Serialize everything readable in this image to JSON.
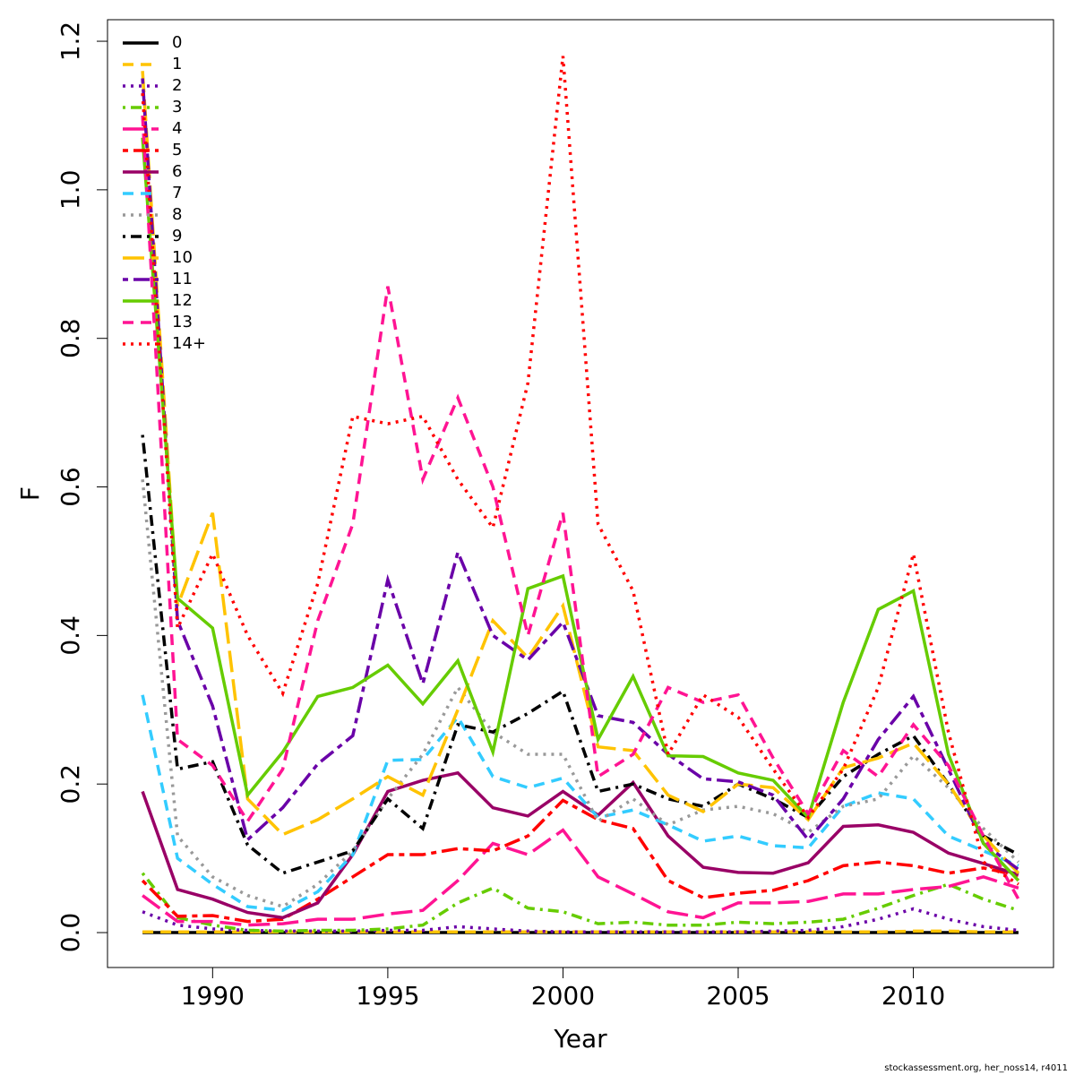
{
  "chart_data": {
    "type": "line",
    "x_label": "Year",
    "y_label": "F",
    "footer": "stockassessment.org, her_noss14, r4011",
    "x": [
      1988,
      1989,
      1990,
      1991,
      1992,
      1993,
      1994,
      1995,
      1996,
      1997,
      1998,
      1999,
      2000,
      2001,
      2002,
      2003,
      2004,
      2005,
      2006,
      2007,
      2008,
      2009,
      2010,
      2011,
      2012,
      2013
    ],
    "xlim": [
      1987,
      2014
    ],
    "xticks": [
      1990,
      1995,
      2000,
      2005,
      2010
    ],
    "ylim": [
      -0.047,
      1.229
    ],
    "yticks": [
      {
        "value": 0,
        "label": "0.0"
      },
      0.2,
      0.4,
      0.6,
      0.8,
      {
        "value": 1,
        "label": "1.0"
      },
      1.2
    ],
    "grid": false,
    "legend": "topleft",
    "series": [
      {
        "name": "0",
        "color": "#000000",
        "dash": "solid",
        "values": [
          0,
          0,
          0,
          0,
          0,
          0,
          0,
          0,
          0,
          0,
          0,
          0,
          0,
          0,
          0,
          0,
          0,
          0,
          0,
          0,
          0,
          0,
          0,
          0,
          0,
          0
        ]
      },
      {
        "name": "1",
        "color": "#ffc300",
        "dash": "dashed",
        "values": [
          0.001,
          0.001,
          0.001,
          0.001,
          0.001,
          0.001,
          0.001,
          0.001,
          0.001,
          0.001,
          0.001,
          0.001,
          0.001,
          0.001,
          0.001,
          0.001,
          0.001,
          0.001,
          0.001,
          0.001,
          0.001,
          0.001,
          0.002,
          0.002,
          0.001,
          0.001
        ]
      },
      {
        "name": "2",
        "color": "#6a00a8",
        "dash": "dotted",
        "values": [
          0.028,
          0.01,
          0.005,
          0.003,
          0.002,
          0.002,
          0.002,
          0.003,
          0.003,
          0.008,
          0.005,
          0.002,
          0.001,
          0.001,
          0.001,
          0.001,
          0.001,
          0.001,
          0.002,
          0.003,
          0.008,
          0.018,
          0.032,
          0.018,
          0.008,
          0.003
        ]
      },
      {
        "name": "3",
        "color": "#66cc00",
        "dash": "dotdash",
        "values": [
          0.08,
          0.02,
          0.01,
          0.003,
          0.002,
          0.003,
          0.003,
          0.005,
          0.01,
          0.04,
          0.06,
          0.033,
          0.028,
          0.012,
          0.014,
          0.01,
          0.01,
          0.014,
          0.012,
          0.014,
          0.018,
          0.033,
          0.05,
          0.065,
          0.045,
          0.03
        ]
      },
      {
        "name": "4",
        "color": "#ff1493",
        "dash": "longdash",
        "values": [
          0.05,
          0.015,
          0.015,
          0.01,
          0.012,
          0.018,
          0.018,
          0.025,
          0.03,
          0.07,
          0.12,
          0.105,
          0.138,
          0.075,
          0.052,
          0.028,
          0.02,
          0.04,
          0.04,
          0.042,
          0.052,
          0.052,
          0.058,
          0.062,
          0.075,
          0.06
        ]
      },
      {
        "name": "5",
        "color": "#ff0000",
        "dash": "twodash",
        "values": [
          0.07,
          0.022,
          0.023,
          0.015,
          0.018,
          0.045,
          0.075,
          0.105,
          0.105,
          0.113,
          0.11,
          0.13,
          0.178,
          0.152,
          0.14,
          0.07,
          0.047,
          0.053,
          0.057,
          0.07,
          0.09,
          0.095,
          0.09,
          0.08,
          0.087,
          0.077
        ]
      },
      {
        "name": "6",
        "color": "#990066",
        "dash": "solid",
        "values": [
          0.19,
          0.058,
          0.045,
          0.027,
          0.02,
          0.04,
          0.105,
          0.19,
          0.205,
          0.215,
          0.168,
          0.157,
          0.19,
          0.158,
          0.202,
          0.13,
          0.088,
          0.081,
          0.08,
          0.094,
          0.143,
          0.145,
          0.135,
          0.107,
          0.093,
          0.078
        ]
      },
      {
        "name": "7",
        "color": "#33ccff",
        "dash": "dashed",
        "values": [
          0.32,
          0.1,
          0.065,
          0.035,
          0.03,
          0.055,
          0.105,
          0.232,
          0.233,
          0.29,
          0.21,
          0.195,
          0.208,
          0.155,
          0.165,
          0.145,
          0.123,
          0.13,
          0.117,
          0.114,
          0.17,
          0.188,
          0.18,
          0.13,
          0.11,
          0.09
        ]
      },
      {
        "name": "8",
        "color": "#999999",
        "dash": "dotted",
        "values": [
          0.61,
          0.13,
          0.075,
          0.05,
          0.035,
          0.065,
          0.11,
          0.18,
          0.24,
          0.33,
          0.27,
          0.24,
          0.24,
          0.15,
          0.18,
          0.145,
          0.165,
          0.17,
          0.16,
          0.135,
          0.17,
          0.18,
          0.238,
          0.195,
          0.14,
          0.095
        ]
      },
      {
        "name": "9",
        "color": "#000000",
        "dash": "dotdash",
        "values": [
          0.67,
          0.22,
          0.23,
          0.118,
          0.08,
          0.095,
          0.11,
          0.18,
          0.14,
          0.28,
          0.27,
          0.295,
          0.325,
          0.19,
          0.2,
          0.18,
          0.17,
          0.2,
          0.18,
          0.155,
          0.21,
          0.24,
          0.265,
          0.2,
          0.13,
          0.105
        ]
      },
      {
        "name": "10",
        "color": "#ffc300",
        "dash": "longdash",
        "values": [
          1.16,
          0.44,
          0.565,
          0.18,
          0.132,
          0.152,
          0.18,
          0.21,
          0.185,
          0.3,
          0.42,
          0.37,
          0.44,
          0.25,
          0.245,
          0.185,
          0.163,
          0.2,
          0.195,
          0.152,
          0.222,
          0.235,
          0.255,
          0.2,
          0.13,
          0.08
        ]
      },
      {
        "name": "11",
        "color": "#6a00a8",
        "dash": "twodash",
        "values": [
          1.15,
          0.42,
          0.305,
          0.125,
          0.168,
          0.227,
          0.265,
          0.475,
          0.335,
          0.512,
          0.4,
          0.367,
          0.418,
          0.292,
          0.283,
          0.24,
          0.207,
          0.203,
          0.185,
          0.125,
          0.18,
          0.26,
          0.318,
          0.22,
          0.12,
          0.085
        ]
      },
      {
        "name": "12",
        "color": "#66cc00",
        "dash": "solid",
        "values": [
          1.07,
          0.45,
          0.41,
          0.185,
          0.243,
          0.318,
          0.33,
          0.36,
          0.308,
          0.366,
          0.243,
          0.463,
          0.48,
          0.26,
          0.345,
          0.238,
          0.237,
          0.215,
          0.205,
          0.155,
          0.31,
          0.435,
          0.46,
          0.24,
          0.12,
          0.07
        ]
      },
      {
        "name": "13",
        "color": "#ff1493",
        "dash": "dashed",
        "values": [
          1.1,
          0.26,
          0.225,
          0.15,
          0.22,
          0.42,
          0.55,
          0.87,
          0.61,
          0.72,
          0.6,
          0.4,
          0.565,
          0.21,
          0.24,
          0.33,
          0.31,
          0.32,
          0.235,
          0.16,
          0.245,
          0.21,
          0.28,
          0.225,
          0.13,
          0.045
        ]
      },
      {
        "name": "14+",
        "color": "#ff0000",
        "dash": "dotted",
        "values": [
          1.13,
          0.41,
          0.51,
          0.4,
          0.322,
          0.47,
          0.695,
          0.685,
          0.695,
          0.61,
          0.545,
          0.74,
          1.18,
          0.55,
          0.46,
          0.24,
          0.32,
          0.29,
          0.22,
          0.155,
          0.22,
          0.33,
          0.51,
          0.27,
          0.095,
          0.065
        ]
      }
    ]
  }
}
